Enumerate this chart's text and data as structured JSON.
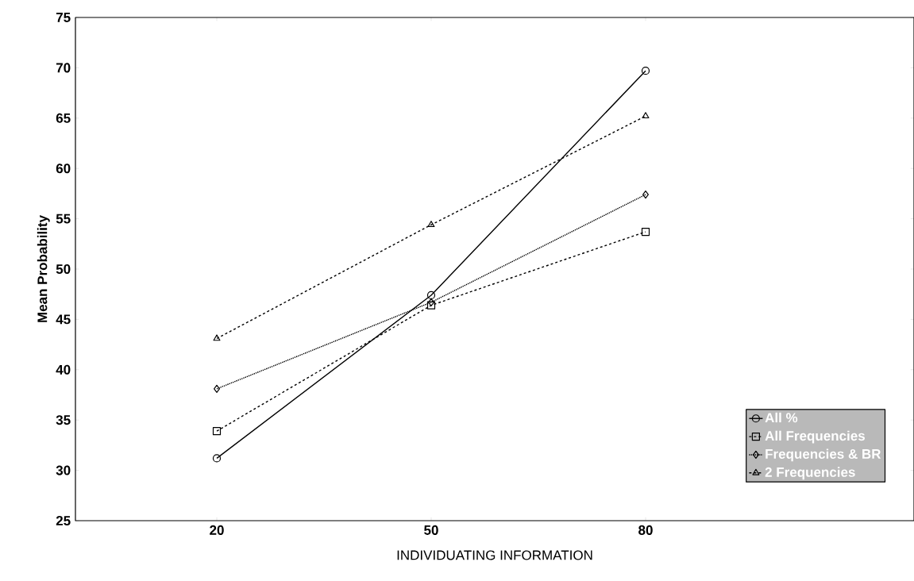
{
  "chart_data": {
    "type": "line",
    "xlabel": "INDIVIDUATING INFORMATION",
    "ylabel": "Mean Probability",
    "categories": [
      "20",
      "50",
      "80"
    ],
    "ylim": [
      25,
      75
    ],
    "yticks": [
      25,
      30,
      35,
      40,
      45,
      50,
      55,
      60,
      65,
      70,
      75
    ],
    "grid": false,
    "legend": "bottom right",
    "series": [
      {
        "name": "All %",
        "color": "#000000",
        "values": [
          31.2,
          47.4,
          69.7
        ],
        "marker": "circle",
        "line_style": "solid"
      },
      {
        "name": "All Frequencies",
        "color": "#000000",
        "values": [
          33.9,
          46.4,
          53.7
        ],
        "marker": "square",
        "line_style": "dashed"
      },
      {
        "name": "Frequencies & BR",
        "color": "#000000",
        "values": [
          38.1,
          46.7,
          57.4
        ],
        "marker": "diamond",
        "line_style": "dotted"
      },
      {
        "name": "2 Frequencies",
        "color": "#000000",
        "values": [
          43.1,
          54.4,
          65.2
        ],
        "marker": "triangle",
        "line_style": "dashed"
      }
    ]
  }
}
